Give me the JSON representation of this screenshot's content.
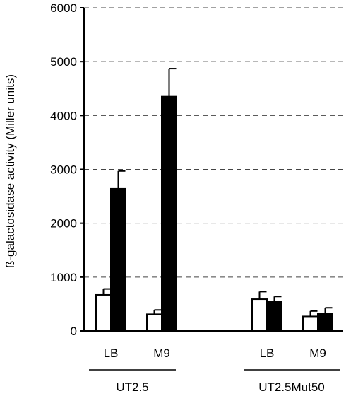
{
  "chart_data": {
    "type": "bar",
    "title": "",
    "xlabel": "",
    "ylabel": "ß-galactosidase activity (Miller units)",
    "ylim": [
      0,
      6000
    ],
    "yticks": [
      0,
      1000,
      2000,
      3000,
      4000,
      5000,
      6000
    ],
    "ytick_labels": [
      "0",
      "1000",
      "2000",
      "3000",
      "4000",
      "5000",
      "6000"
    ],
    "grid": "horizontal dashed",
    "groups": [
      {
        "label": "UT2.5",
        "categories": [
          {
            "label": "LB",
            "bars": [
              {
                "color": "#ffffff",
                "value": 670,
                "error": 110
              },
              {
                "color": "#000000",
                "value": 2640,
                "error": 330
              }
            ]
          },
          {
            "label": "M9",
            "bars": [
              {
                "color": "#ffffff",
                "value": 310,
                "error": 80
              },
              {
                "color": "#000000",
                "value": 4350,
                "error": 520
              }
            ]
          }
        ]
      },
      {
        "label": "UT2.5Mut50",
        "categories": [
          {
            "label": "LB",
            "bars": [
              {
                "color": "#ffffff",
                "value": 590,
                "error": 140
              },
              {
                "color": "#000000",
                "value": 550,
                "error": 90
              }
            ]
          },
          {
            "label": "M9",
            "bars": [
              {
                "color": "#ffffff",
                "value": 270,
                "error": 100
              },
              {
                "color": "#000000",
                "value": 320,
                "error": 110
              }
            ]
          }
        ]
      }
    ]
  }
}
